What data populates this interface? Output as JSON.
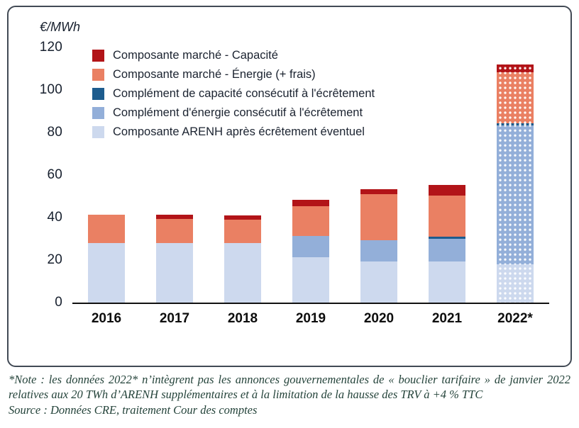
{
  "chart_data": {
    "type": "bar",
    "variant": "stacked",
    "title": "",
    "ylabel": "€/MWh",
    "xlabel": "",
    "ylim": [
      0,
      120
    ],
    "yticks": [
      0,
      20,
      40,
      60,
      80,
      100,
      120
    ],
    "grid": false,
    "legend_position": "top-left-inside",
    "categories": [
      "2016",
      "2017",
      "2018",
      "2019",
      "2020",
      "2021",
      "2022*"
    ],
    "projected_category": "2022*",
    "series": [
      {
        "name": "Composante ARENH après écrêtement éventuel",
        "color": "#cdd9ee",
        "values": [
          28,
          28,
          28,
          21.5,
          19.5,
          19.5,
          18
        ]
      },
      {
        "name": "Complément d'énergie consécutif à l'écrêtement",
        "color": "#93afd9",
        "values": [
          0,
          0,
          0,
          10,
          10,
          10.5,
          65.5
        ]
      },
      {
        "name": "Complément de capacité consécutif à l'écrêtement",
        "color": "#1d5c8e",
        "values": [
          0,
          0,
          0,
          0,
          0,
          1,
          1
        ]
      },
      {
        "name": "Composante marché - Énergie (+ frais)",
        "color": "#ea8063",
        "values": [
          13.5,
          11.5,
          11,
          14,
          21.5,
          19.5,
          24
        ]
      },
      {
        "name": "Composante marché - Capacité",
        "color": "#b21418",
        "values": [
          0,
          2,
          2,
          3,
          2.5,
          5,
          3.5
        ]
      }
    ],
    "legend": [
      {
        "label": "Composante marché - Capacité",
        "color": "#b21418"
      },
      {
        "label": "Composante marché - Énergie (+ frais)",
        "color": "#ea8063"
      },
      {
        "label": "Complément de capacité consécutif à l'écrêtement",
        "color": "#1d5c8e"
      },
      {
        "label": "Complément d'énergie consécutif à l'écrêtement",
        "color": "#93afd9"
      },
      {
        "label": "Composante ARENH après écrêtement éventuel",
        "color": "#cdd9ee"
      }
    ]
  },
  "note": {
    "text": "*Note : les données 2022* n’intègrent pas les annonces gouvernementales de « bouclier tarifaire » de janvier 2022 relatives aux 20 TWh d’ARENH supplémentaires et à la limitation de la hausse des TRV à +4 % TTC"
  },
  "source": {
    "text": "Source : Données CRE, traitement Cour des comptes"
  }
}
